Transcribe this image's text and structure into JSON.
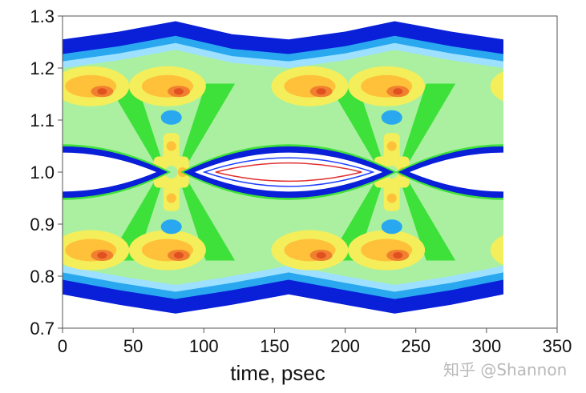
{
  "chart_data": {
    "type": "heatmap",
    "title": "",
    "xlabel": "time, psec",
    "ylabel": "",
    "xlim": [
      0,
      350
    ],
    "ylim": [
      0.7,
      1.3
    ],
    "x_ticks": [
      0,
      50,
      100,
      150,
      200,
      250,
      300,
      350
    ],
    "y_ticks": [
      0.7,
      0.8,
      0.9,
      1.0,
      1.1,
      1.2,
      1.3
    ],
    "y_tick_labels": [
      "0.7",
      "0.8",
      "0.9",
      "1.0",
      "1.1",
      "1.2",
      "1.3"
    ],
    "data_x_range": [
      0,
      312
    ],
    "unit_interval_ps": 155,
    "eye_centers_ps": [
      0,
      160,
      312
    ],
    "crossing_points_ps": [
      77,
      233
    ],
    "outer_envelope_top": [
      {
        "x": 0,
        "y": 1.255
      },
      {
        "x": 40,
        "y": 1.27
      },
      {
        "x": 80,
        "y": 1.29
      },
      {
        "x": 120,
        "y": 1.265
      },
      {
        "x": 160,
        "y": 1.255
      },
      {
        "x": 200,
        "y": 1.27
      },
      {
        "x": 235,
        "y": 1.29
      },
      {
        "x": 275,
        "y": 1.27
      },
      {
        "x": 312,
        "y": 1.255
      }
    ],
    "outer_envelope_bottom": [
      {
        "x": 0,
        "y": 0.765
      },
      {
        "x": 40,
        "y": 0.745
      },
      {
        "x": 80,
        "y": 0.728
      },
      {
        "x": 120,
        "y": 0.745
      },
      {
        "x": 160,
        "y": 0.765
      },
      {
        "x": 200,
        "y": 0.745
      },
      {
        "x": 235,
        "y": 0.728
      },
      {
        "x": 275,
        "y": 0.745
      },
      {
        "x": 312,
        "y": 0.765
      }
    ],
    "density_colors": [
      "#0a1fd8",
      "#29a8f0",
      "#9ee0ff",
      "#aaf0a0",
      "#3ee03a",
      "#f4ee5a",
      "#ffc03a",
      "#f08030",
      "#e05020"
    ],
    "eye_contour_colors": [
      "#2040ff",
      "#e03030"
    ],
    "colors": {
      "background": "#ffffff",
      "axes": "#555555"
    }
  },
  "watermark": "知乎 @Shannon"
}
